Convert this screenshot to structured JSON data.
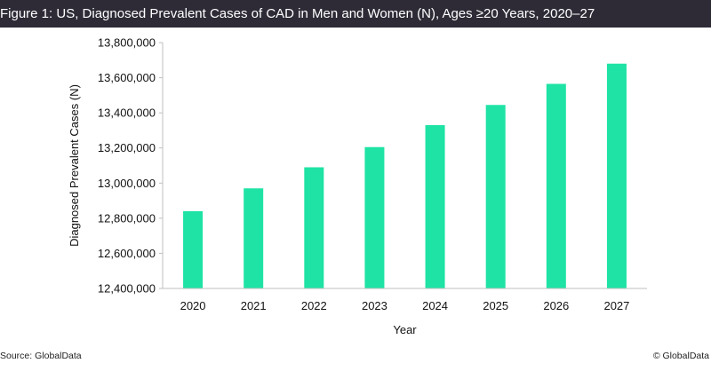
{
  "header": {
    "title": "Figure 1: US, Diagnosed Prevalent Cases of CAD in Men and Women (N), Ages ≥20 Years, 2020–27"
  },
  "footer": {
    "source": "Source: GlobalData",
    "copyright": "© GlobalData"
  },
  "chart_data": {
    "type": "bar",
    "categories": [
      "2020",
      "2021",
      "2022",
      "2023",
      "2024",
      "2025",
      "2026",
      "2027"
    ],
    "values": [
      12840000,
      12970000,
      13090000,
      13205000,
      13330000,
      13445000,
      13565000,
      13680000
    ],
    "xlabel": "Year",
    "ylabel": "Diagnosed Prevalent Cases (N)",
    "ylim": [
      12400000,
      13800000
    ],
    "yticks": [
      "12,400,000",
      "12,600,000",
      "12,800,000",
      "13,000,000",
      "13,200,000",
      "13,400,000",
      "13,600,000",
      "13,800,000"
    ],
    "bar_color": "#1ee3a4",
    "grid": false
  }
}
